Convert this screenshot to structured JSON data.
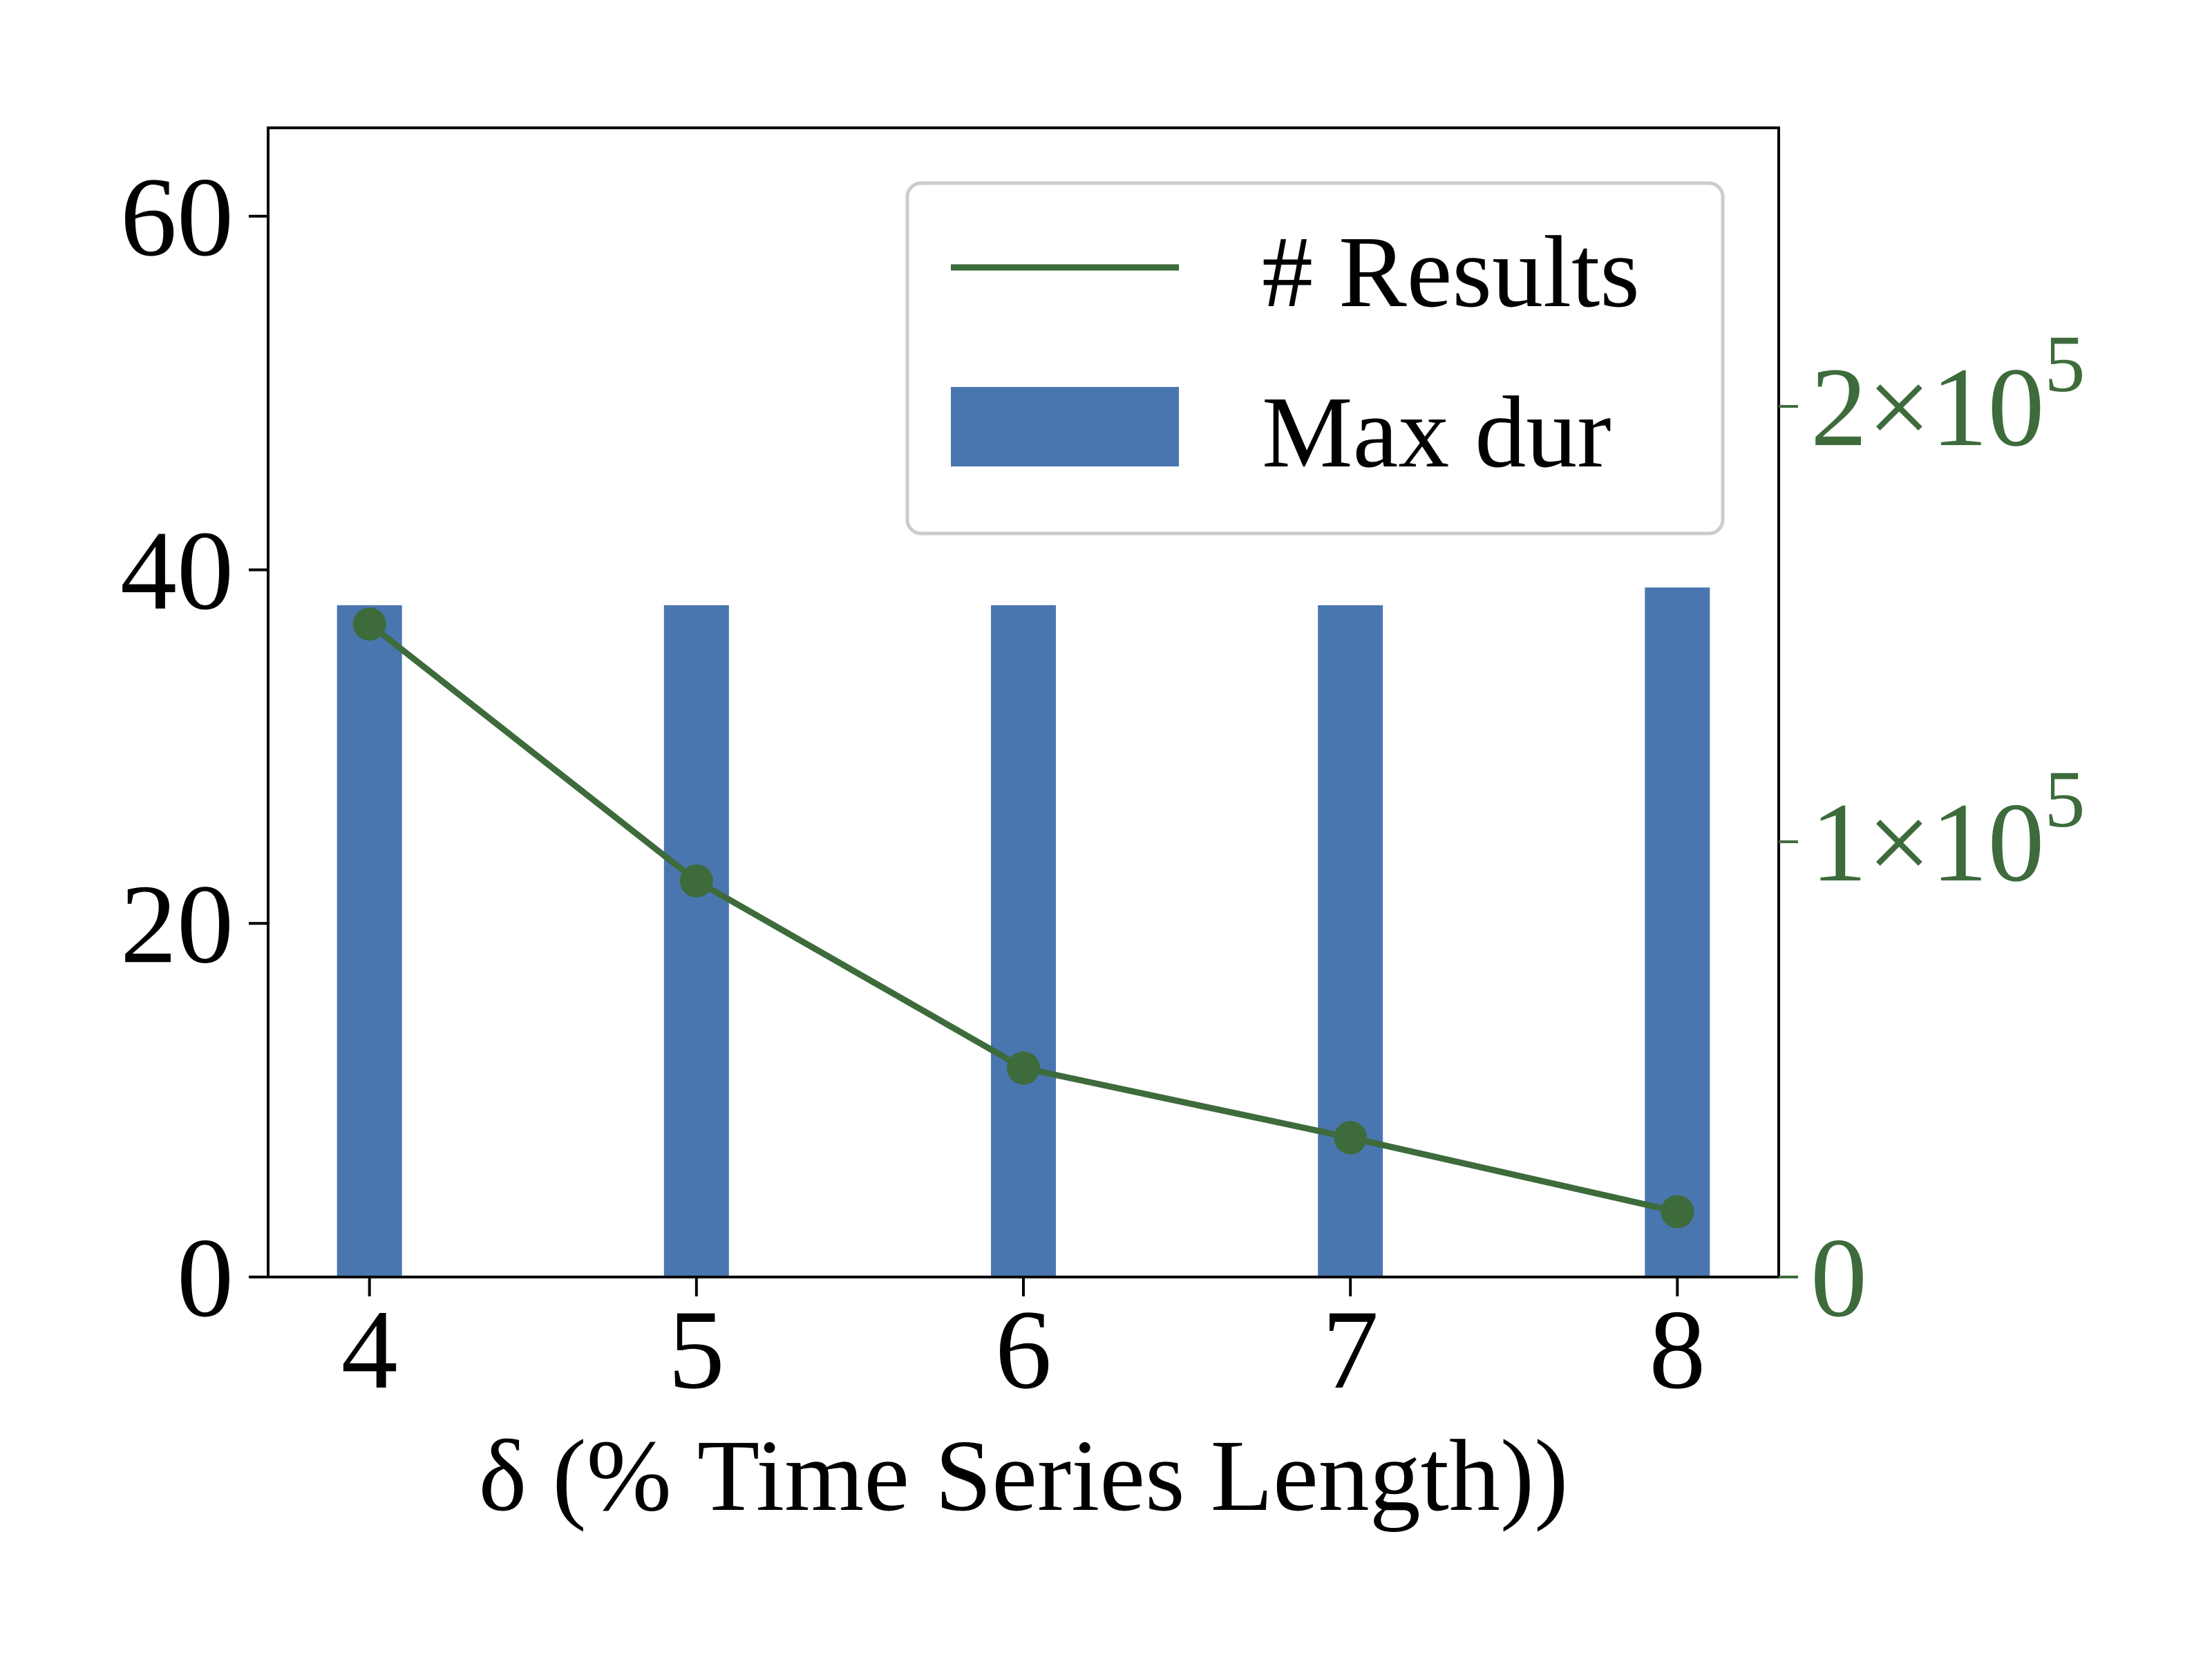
{
  "chart_data": {
    "type": "bar",
    "xlabel": "δ (% Time Series Length))",
    "categories": [
      "4",
      "5",
      "6",
      "7",
      "8"
    ],
    "x": [
      4,
      5,
      6,
      7,
      8
    ],
    "xlim": [
      3.69,
      8.31
    ],
    "bar_series": {
      "name": "Max dur",
      "values": [
        38,
        38,
        38,
        38,
        39
      ],
      "axis": "left",
      "color": "#4a76b0"
    },
    "line_series": {
      "name": "# Results",
      "values": [
        150000,
        91000,
        48000,
        32000,
        15000
      ],
      "axis": "right",
      "color": "#3d6b3b",
      "marker": "circle"
    },
    "left_axis": {
      "ylim": [
        0,
        65
      ],
      "ticks": [
        0,
        20,
        40,
        60
      ],
      "tick_labels": [
        "0",
        "20",
        "40",
        "60"
      ]
    },
    "right_axis": {
      "ylim": [
        0,
        264000
      ],
      "ticks": [
        0,
        100000,
        200000
      ],
      "tick_labels": [
        {
          "mantissa": "0",
          "exponent": ""
        },
        {
          "mantissa": "1×10",
          "exponent": "5"
        },
        {
          "mantissa": "2×10",
          "exponent": "5"
        }
      ],
      "color": "#3d6b3b"
    },
    "legend": {
      "placement": "upper right",
      "entries": [
        {
          "label": "# Results",
          "kind": "line",
          "color": "#3d6b3b"
        },
        {
          "label": "Max dur",
          "kind": "bar",
          "color": "#4a76b0"
        }
      ]
    },
    "grid": false
  }
}
